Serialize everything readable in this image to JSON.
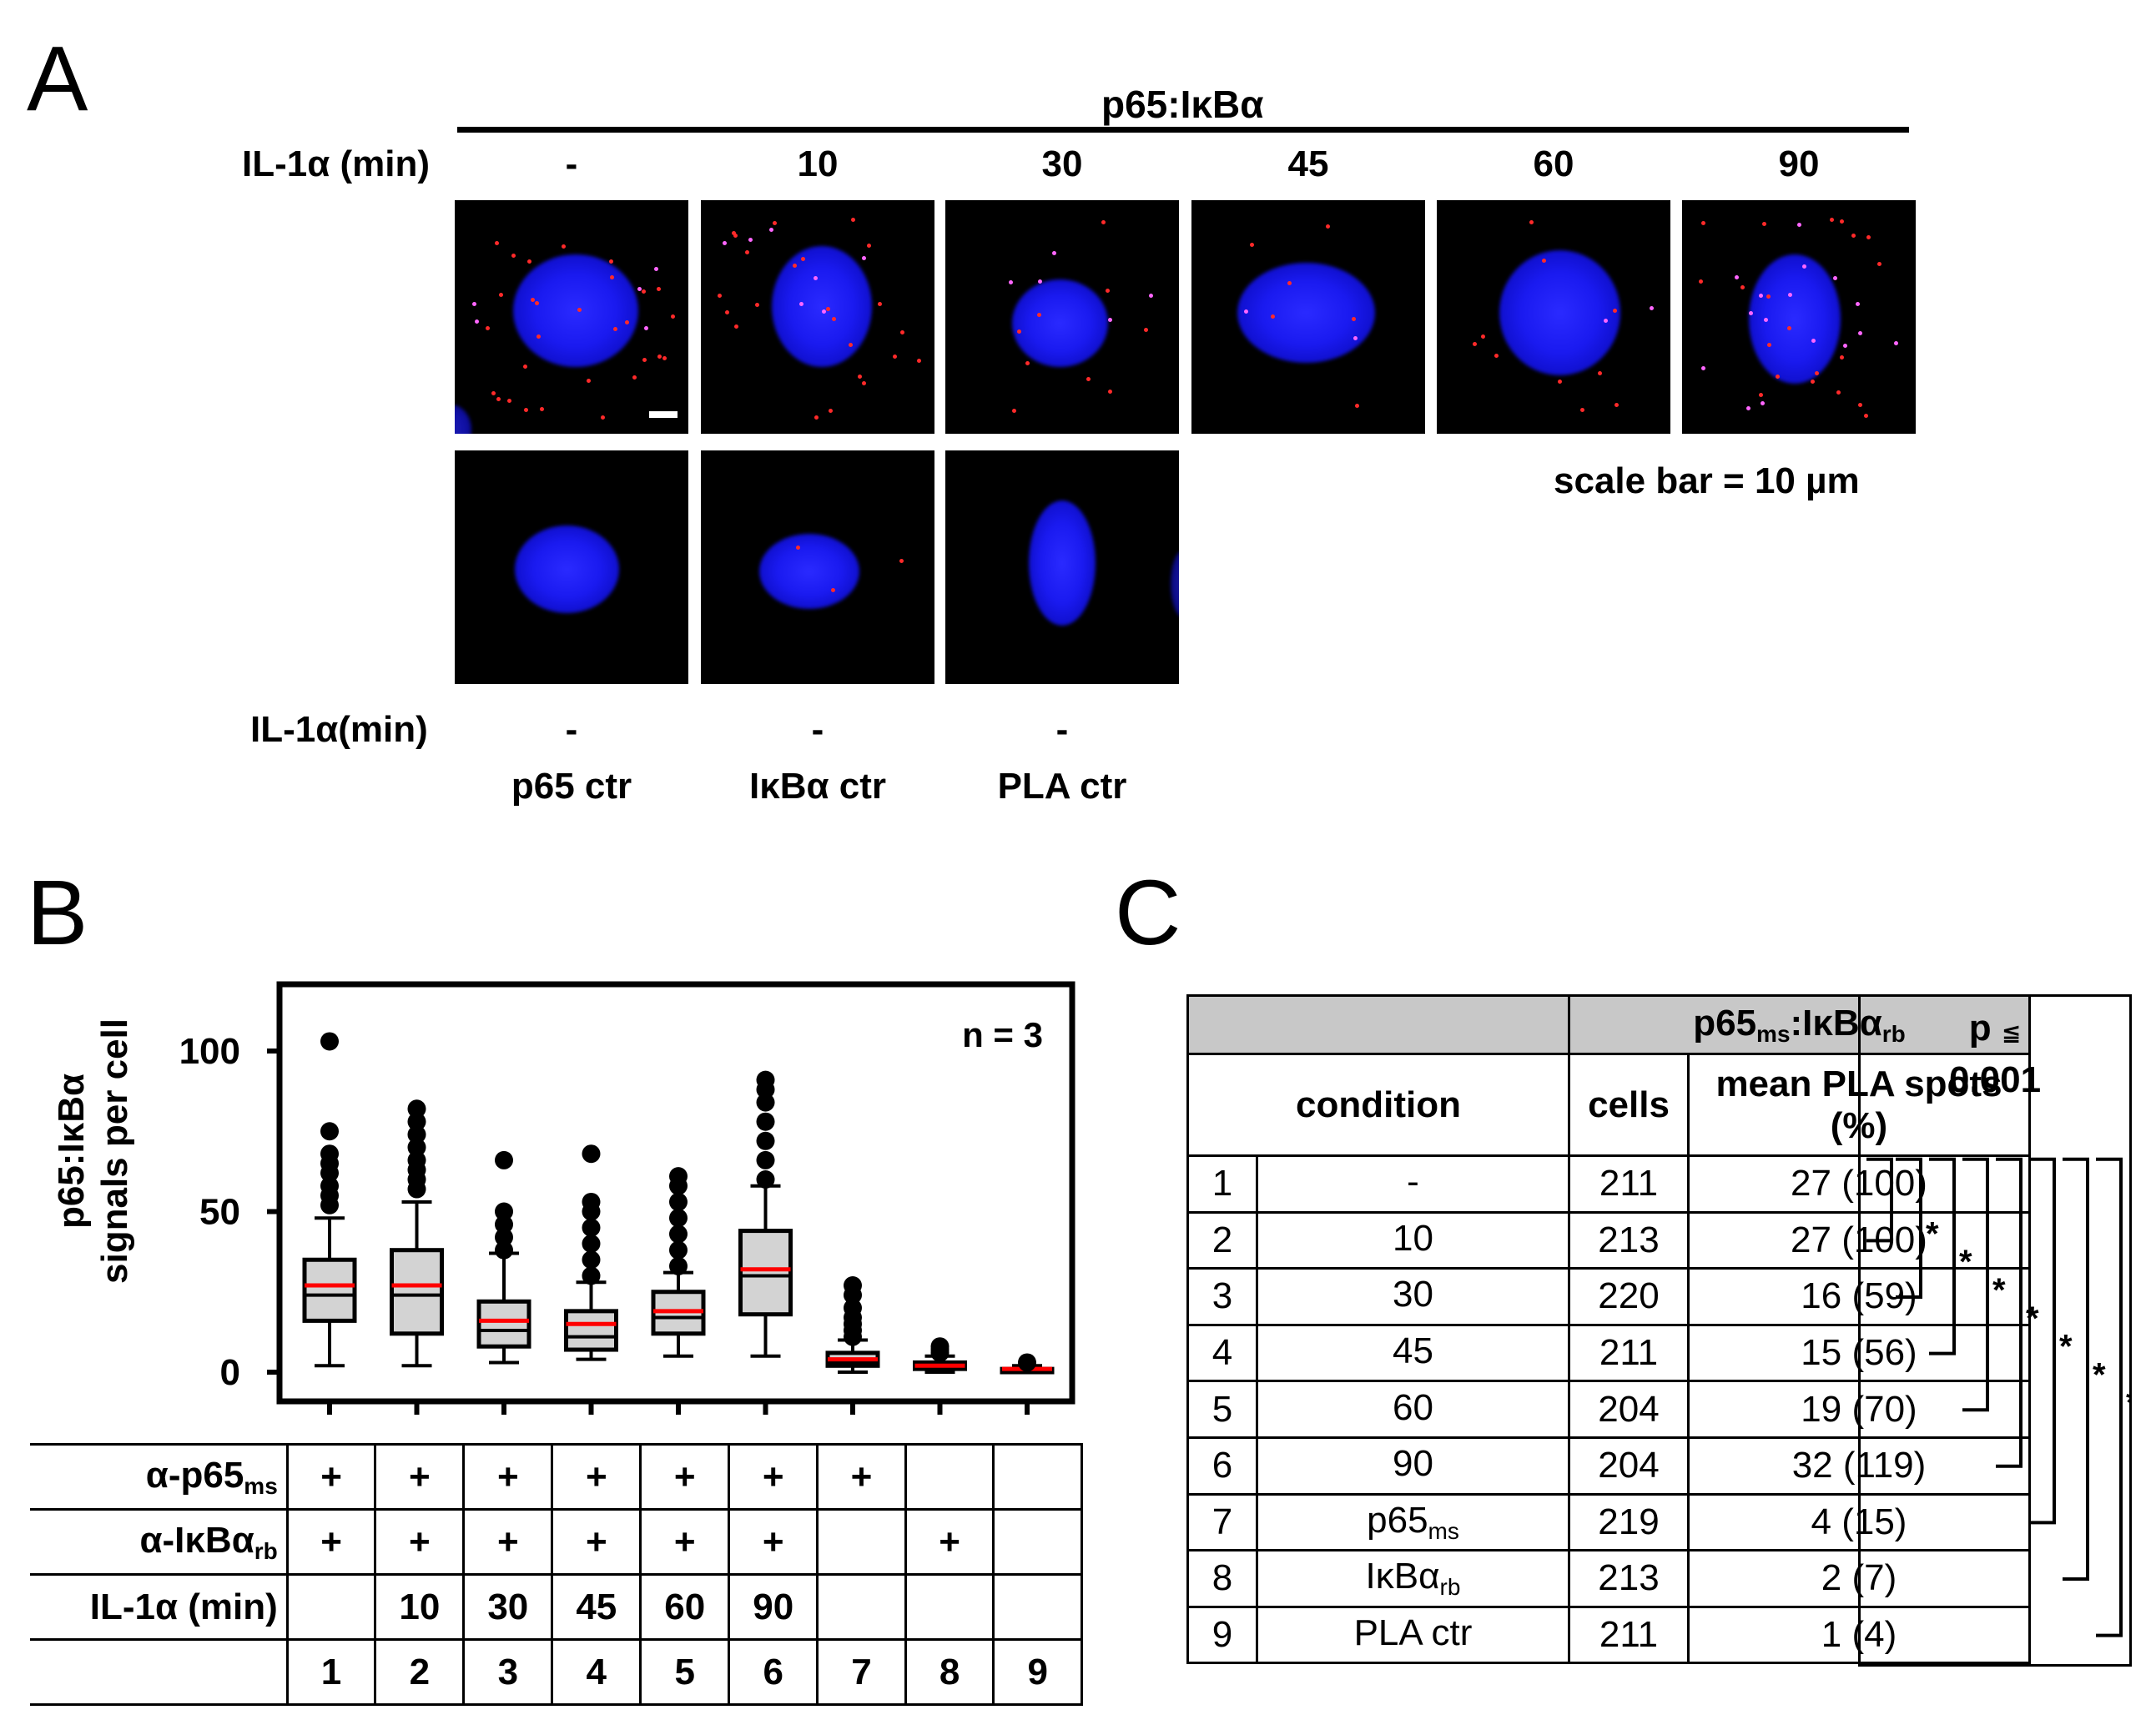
{
  "panels": {
    "a": "A",
    "b": "B",
    "c": "C"
  },
  "panel_a": {
    "group_label": "p65:IκBα",
    "il1a_label": "IL-1α (min)",
    "timepoints": [
      "-",
      "10",
      "30",
      "45",
      "60",
      "90"
    ],
    "bottom_il1a_label": "IL-1α(min)",
    "control_values": [
      "-",
      "-",
      "-"
    ],
    "control_names": [
      "p65 ctr",
      "IκBα ctr",
      "PLA ctr"
    ],
    "scale_bar_text": "scale bar = 10 µm",
    "colors": {
      "nucleus": "#1a1af0",
      "spots": "#ff2a2a",
      "background": "#000000"
    }
  },
  "panel_b": {
    "ylabel_line1": "p65:IκBα",
    "ylabel_line2": "signals per cell",
    "n_label": "n = 3",
    "yticks": [
      "100",
      "50",
      "0"
    ],
    "row_labels": {
      "p65_main": "α-p65",
      "p65_sub": "ms",
      "ikba_main": "α-IκBα",
      "ikba_sub": "rb",
      "il1a": "IL-1α (min)"
    },
    "p65_marks": [
      "+",
      "+",
      "+",
      "+",
      "+",
      "+",
      "+",
      "",
      ""
    ],
    "ikba_marks": [
      "+",
      "+",
      "+",
      "+",
      "+",
      "+",
      "",
      "+",
      ""
    ],
    "il1a_values": [
      "",
      "10",
      "30",
      "45",
      "60",
      "90",
      "",
      "",
      ""
    ],
    "lane_numbers": [
      "1",
      "2",
      "3",
      "4",
      "5",
      "6",
      "7",
      "8",
      "9"
    ]
  },
  "chart_data": {
    "type": "box",
    "categories": [
      "1",
      "2",
      "3",
      "4",
      "5",
      "6",
      "7",
      "8",
      "9"
    ],
    "ylabel": "p65:IκBα signals per cell",
    "ylim": [
      0,
      110
    ],
    "yticks": [
      0,
      50,
      100
    ],
    "annotation": "n = 3",
    "colors": {
      "box": "#d3d3d3",
      "mean": "#ff0000",
      "outline": "#000000"
    },
    "series": [
      {
        "values": {
          "whisker_low": 2,
          "q1": 16,
          "median": 24,
          "q3": 35,
          "whisker_high": 48,
          "mean": 27,
          "outliers": [
            52,
            55,
            58,
            62,
            65,
            68,
            75,
            103
          ]
        }
      },
      {
        "values": {
          "whisker_low": 2,
          "q1": 12,
          "median": 24,
          "q3": 38,
          "whisker_high": 53,
          "mean": 27,
          "outliers": [
            57,
            60,
            63,
            66,
            70,
            74,
            78,
            82
          ]
        }
      },
      {
        "values": {
          "whisker_low": 3,
          "q1": 8,
          "median": 13,
          "q3": 22,
          "whisker_high": 37,
          "mean": 16,
          "outliers": [
            38,
            42,
            46,
            50,
            66
          ]
        }
      },
      {
        "values": {
          "whisker_low": 4,
          "q1": 7,
          "median": 11,
          "q3": 19,
          "whisker_high": 28,
          "mean": 15,
          "outliers": [
            30,
            35,
            40,
            45,
            50,
            53,
            68
          ]
        }
      },
      {
        "values": {
          "whisker_low": 5,
          "q1": 12,
          "median": 17,
          "q3": 25,
          "whisker_high": 31,
          "mean": 19,
          "outliers": [
            33,
            38,
            43,
            48,
            53,
            58,
            61
          ]
        }
      },
      {
        "values": {
          "whisker_low": 5,
          "q1": 18,
          "median": 30,
          "q3": 44,
          "whisker_high": 58,
          "mean": 32,
          "outliers": [
            60,
            66,
            72,
            78,
            84,
            88,
            91
          ]
        }
      },
      {
        "values": {
          "whisker_low": 0,
          "q1": 2,
          "median": 3,
          "q3": 6,
          "whisker_high": 10,
          "mean": 4,
          "outliers": [
            11,
            13,
            15,
            17,
            20,
            24,
            27
          ]
        }
      },
      {
        "values": {
          "whisker_low": 0,
          "q1": 1,
          "median": 2,
          "q3": 3,
          "whisker_high": 5,
          "mean": 2,
          "outliers": [
            6,
            7,
            8
          ]
        }
      },
      {
        "values": {
          "whisker_low": 0,
          "q1": 0,
          "median": 1,
          "q3": 1,
          "whisker_high": 2,
          "mean": 1,
          "outliers": [
            3
          ]
        }
      }
    ]
  },
  "panel_c": {
    "group_header_main": "p65",
    "group_header_sub": "ms",
    "group_header_mid": ":IκBα",
    "group_header_sub2": "rb",
    "col_condition": "condition",
    "col_cells": "cells",
    "col_mean_line1": "mean PLA spots",
    "col_mean_line2": "(%)",
    "p_label_main": "p",
    "p_label_sym": "≦",
    "p_value": "0.001",
    "sig_mark": "*",
    "rows": [
      {
        "num": "1",
        "cond": "-",
        "cond_sub": "",
        "cells": "211",
        "mean": "27 (100)"
      },
      {
        "num": "2",
        "cond": "10",
        "cond_sub": "",
        "cells": "213",
        "mean": "27 (100)"
      },
      {
        "num": "3",
        "cond": "30",
        "cond_sub": "",
        "cells": "220",
        "mean": "16 (59)"
      },
      {
        "num": "4",
        "cond": "45",
        "cond_sub": "",
        "cells": "211",
        "mean": "15 (56)"
      },
      {
        "num": "5",
        "cond": "60",
        "cond_sub": "",
        "cells": "204",
        "mean": "19 (70)"
      },
      {
        "num": "6",
        "cond": "90",
        "cond_sub": "",
        "cells": "204",
        "mean": "32 (119)"
      },
      {
        "num": "7",
        "cond": "p65",
        "cond_sub": "ms",
        "cells": "219",
        "mean": "4 (15)"
      },
      {
        "num": "8",
        "cond": "IκBα",
        "cond_sub": "rb",
        "cells": "213",
        "mean": "2 (7)"
      },
      {
        "num": "9",
        "cond": "PLA ctr",
        "cond_sub": "",
        "cells": "211",
        "mean": "1 (4)"
      }
    ]
  }
}
